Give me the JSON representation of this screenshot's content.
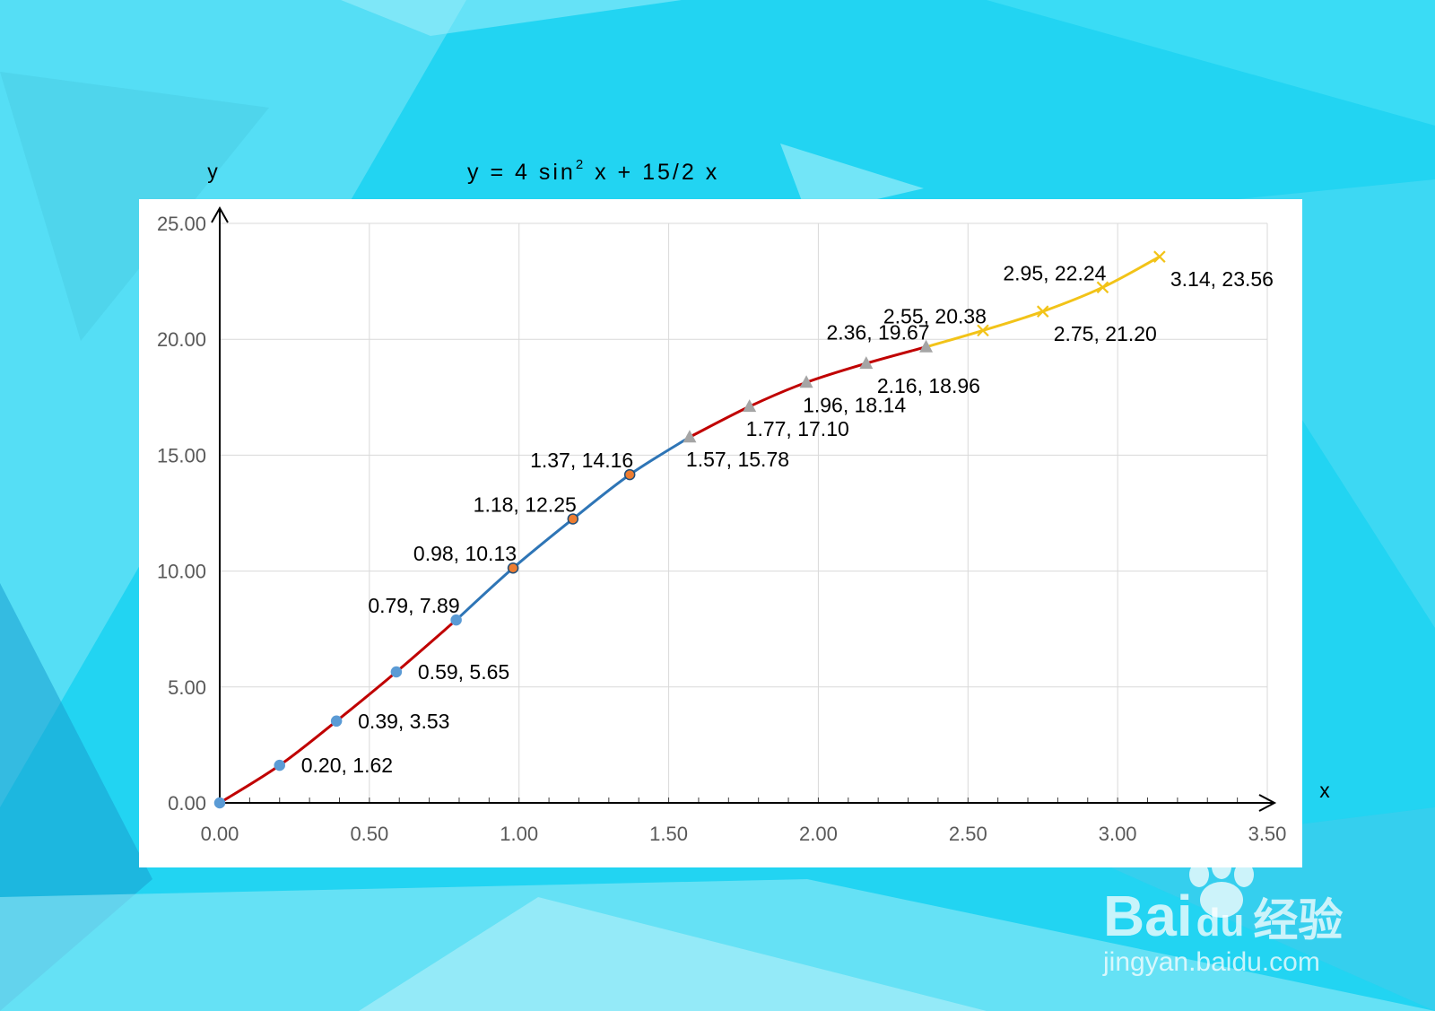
{
  "formula": {
    "prefix": "y  =  4  sin",
    "exponent": "2",
    "suffix": "  x  +  15/2 x"
  },
  "watermark": {
    "brand": "Bai",
    "brand_mid": "du",
    "brand_cn": "经验",
    "url": "jingyan.baidu.com"
  },
  "chart_data": {
    "type": "scatter",
    "title": "y  =  4  sin² x  +  15/2 x",
    "xlabel": "x",
    "ylabel": "y",
    "xlim": [
      0,
      3.5
    ],
    "ylim": [
      0,
      25
    ],
    "grid": true,
    "x_ticks": [
      "0.00",
      "0.50",
      "1.00",
      "1.50",
      "2.00",
      "2.50",
      "3.00",
      "3.50"
    ],
    "y_ticks": [
      "0.00",
      "5.00",
      "10.00",
      "15.00",
      "20.00",
      "25.00"
    ],
    "series": [
      {
        "line_color": "#c00000",
        "marker": "circle",
        "marker_color": "#5b9bd5",
        "points": [
          {
            "x": 0.0,
            "y": 0.0,
            "label": ""
          },
          {
            "x": 0.2,
            "y": 1.62,
            "label": "0.20, 1.62",
            "pos": "right"
          },
          {
            "x": 0.39,
            "y": 3.53,
            "label": "0.39, 3.53",
            "pos": "right"
          },
          {
            "x": 0.59,
            "y": 5.65,
            "label": "0.59, 5.65",
            "pos": "right"
          },
          {
            "x": 0.79,
            "y": 7.89,
            "label": "0.79, 7.89",
            "pos": "upleft"
          }
        ]
      },
      {
        "line_color": "#2e75b6",
        "marker": "circle",
        "marker_color": "#ed7d31",
        "points": [
          {
            "x": 0.79,
            "y": 7.89,
            "label": ""
          },
          {
            "x": 0.98,
            "y": 10.13,
            "label": "0.98, 10.13",
            "pos": "upleft"
          },
          {
            "x": 1.18,
            "y": 12.25,
            "label": "1.18, 12.25",
            "pos": "upleft"
          },
          {
            "x": 1.37,
            "y": 14.16,
            "label": "1.37, 14.16",
            "pos": "upleft"
          },
          {
            "x": 1.57,
            "y": 15.78,
            "label": ""
          }
        ]
      },
      {
        "line_color": "#c00000",
        "marker": "triangle",
        "marker_color": "#a5a5a5",
        "points": [
          {
            "x": 1.57,
            "y": 15.78,
            "label": "1.57, 15.78",
            "pos": "below"
          },
          {
            "x": 1.77,
            "y": 17.1,
            "label": "1.77, 17.10",
            "pos": "below"
          },
          {
            "x": 1.96,
            "y": 18.14,
            "label": "1.96, 18.14",
            "pos": "below"
          },
          {
            "x": 2.16,
            "y": 18.96,
            "label": "2.16, 18.96",
            "pos": "belowright"
          },
          {
            "x": 2.36,
            "y": 19.67,
            "label": "2.36, 19.67",
            "pos": "upleft"
          }
        ]
      },
      {
        "line_color": "#f2c318",
        "marker": "x",
        "marker_color": "#f2c318",
        "points": [
          {
            "x": 2.36,
            "y": 19.67,
            "label": ""
          },
          {
            "x": 2.55,
            "y": 20.38,
            "label": "2.55, 20.38",
            "pos": "upleft"
          },
          {
            "x": 2.75,
            "y": 21.2,
            "label": "2.75, 21.20",
            "pos": "belowright"
          },
          {
            "x": 2.95,
            "y": 22.24,
            "label": "2.95, 22.24",
            "pos": "upleft"
          },
          {
            "x": 3.14,
            "y": 23.56,
            "label": "3.14, 23.56",
            "pos": "belowright"
          }
        ]
      }
    ]
  }
}
